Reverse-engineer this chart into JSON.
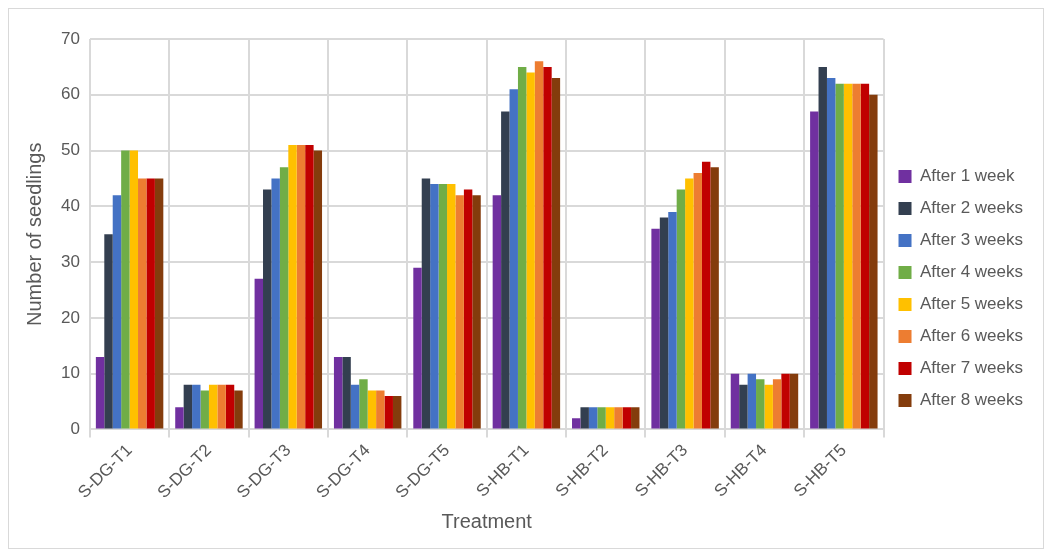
{
  "chart_data": {
    "type": "bar",
    "xlabel": "Treatment",
    "ylabel": "Number of seedlings",
    "categories": [
      "S-DG-T1",
      "S-DG-T2",
      "S-DG-T3",
      "S-DG-T4",
      "S-DG-T5",
      "S-HB-T1",
      "S-HB-T2",
      "S-HB-T3",
      "S-HB-T4",
      "S-HB-T5"
    ],
    "series": [
      {
        "name": "After 1 week",
        "color": "#7030a0",
        "values": [
          13,
          4,
          27,
          13,
          29,
          42,
          2,
          36,
          10,
          57
        ]
      },
      {
        "name": "After 2 weeks",
        "color": "#333f50",
        "values": [
          35,
          8,
          43,
          13,
          45,
          57,
          4,
          38,
          8,
          65
        ]
      },
      {
        "name": "After 3 weeks",
        "color": "#4472c4",
        "values": [
          42,
          8,
          45,
          8,
          44,
          61,
          4,
          39,
          10,
          63
        ]
      },
      {
        "name": "After 4 weeks",
        "color": "#70ad47",
        "values": [
          50,
          7,
          47,
          9,
          44,
          65,
          4,
          43,
          9,
          62
        ]
      },
      {
        "name": "After 5 weeks",
        "color": "#ffc000",
        "values": [
          50,
          8,
          51,
          7,
          44,
          64,
          4,
          45,
          8,
          62
        ]
      },
      {
        "name": "After 6 weeks",
        "color": "#ed7d31",
        "values": [
          45,
          8,
          51,
          7,
          42,
          66,
          4,
          46,
          9,
          62
        ]
      },
      {
        "name": "After 7 weeks",
        "color": "#c00000",
        "values": [
          45,
          8,
          51,
          6,
          43,
          65,
          4,
          48,
          10,
          62
        ]
      },
      {
        "name": "After 8 weeks",
        "color": "#843c0c",
        "values": [
          45,
          7,
          50,
          6,
          42,
          63,
          4,
          47,
          10,
          60
        ]
      }
    ],
    "ylim": [
      0,
      70
    ],
    "yticks": [
      0,
      10,
      20,
      30,
      40,
      50,
      60,
      70
    ],
    "grid": true,
    "legend": "right"
  }
}
